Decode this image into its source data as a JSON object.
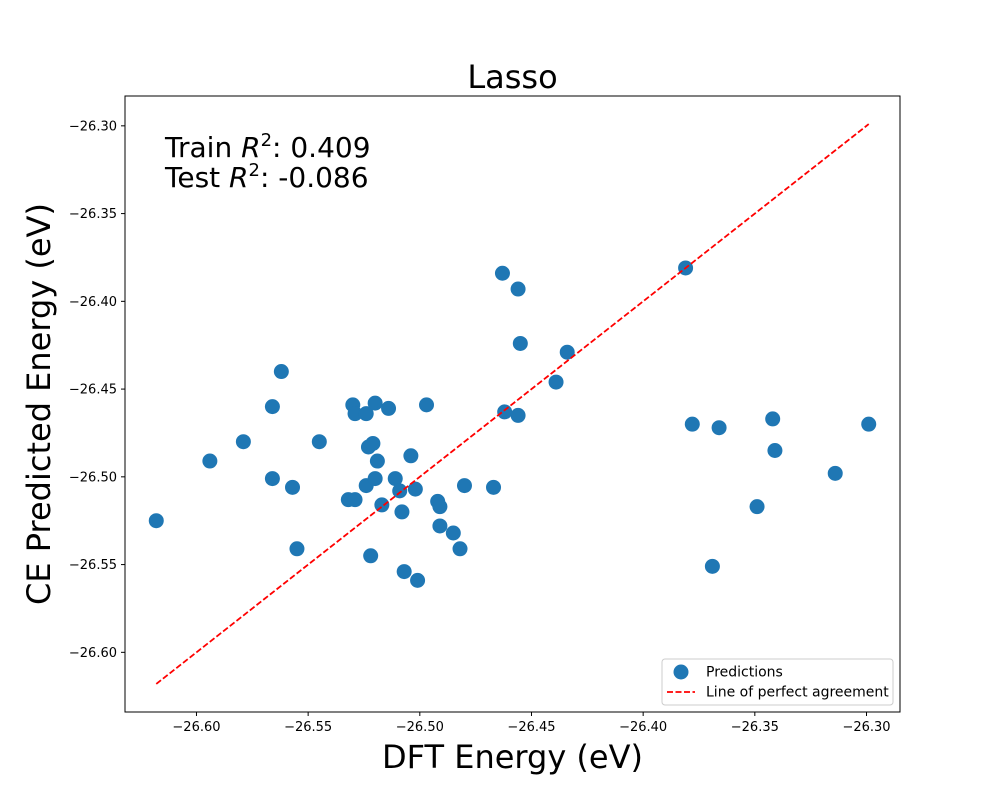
{
  "chart_data": {
    "type": "scatter",
    "title": "Lasso",
    "xlabel": "DFT Energy (eV)",
    "ylabel": "CE Predicted Energy (eV)",
    "xlim": [
      -26.632,
      -26.285
    ],
    "ylim": [
      -26.634,
      -26.283
    ],
    "xticks": [
      -26.6,
      -26.55,
      -26.5,
      -26.45,
      -26.4,
      -26.35,
      -26.3
    ],
    "yticks": [
      -26.3,
      -26.35,
      -26.4,
      -26.45,
      -26.5,
      -26.55,
      -26.6
    ],
    "xtick_labels": [
      "−26.60",
      "−26.55",
      "−26.50",
      "−26.45",
      "−26.40",
      "−26.35",
      "−26.30"
    ],
    "ytick_labels": [
      "−26.30",
      "−26.35",
      "−26.40",
      "−26.45",
      "−26.50",
      "−26.55",
      "−26.60"
    ],
    "grid": false,
    "legend_position": "bottom-right",
    "annotations": [
      {
        "prefix": "Train ",
        "symbol": "R",
        "sup": "2",
        "suffix": ": 0.409"
      },
      {
        "prefix": "Test ",
        "symbol": "R",
        "sup": "2",
        "suffix": ": -0.086"
      }
    ],
    "series": [
      {
        "name": "Predictions",
        "kind": "scatter",
        "color": "#1f77b4",
        "points": [
          [
            -26.618,
            -26.525
          ],
          [
            -26.594,
            -26.491
          ],
          [
            -26.579,
            -26.48
          ],
          [
            -26.566,
            -26.46
          ],
          [
            -26.566,
            -26.501
          ],
          [
            -26.562,
            -26.44
          ],
          [
            -26.557,
            -26.506
          ],
          [
            -26.555,
            -26.541
          ],
          [
            -26.545,
            -26.48
          ],
          [
            -26.532,
            -26.513
          ],
          [
            -26.53,
            -26.459
          ],
          [
            -26.529,
            -26.513
          ],
          [
            -26.529,
            -26.464
          ],
          [
            -26.524,
            -26.464
          ],
          [
            -26.524,
            -26.505
          ],
          [
            -26.523,
            -26.483
          ],
          [
            -26.522,
            -26.545
          ],
          [
            -26.521,
            -26.481
          ],
          [
            -26.52,
            -26.501
          ],
          [
            -26.52,
            -26.458
          ],
          [
            -26.519,
            -26.491
          ],
          [
            -26.517,
            -26.516
          ],
          [
            -26.514,
            -26.461
          ],
          [
            -26.511,
            -26.501
          ],
          [
            -26.509,
            -26.508
          ],
          [
            -26.508,
            -26.52
          ],
          [
            -26.507,
            -26.554
          ],
          [
            -26.504,
            -26.488
          ],
          [
            -26.502,
            -26.507
          ],
          [
            -26.501,
            -26.559
          ],
          [
            -26.497,
            -26.459
          ],
          [
            -26.492,
            -26.514
          ],
          [
            -26.491,
            -26.517
          ],
          [
            -26.491,
            -26.528
          ],
          [
            -26.485,
            -26.532
          ],
          [
            -26.482,
            -26.541
          ],
          [
            -26.48,
            -26.505
          ],
          [
            -26.467,
            -26.506
          ],
          [
            -26.463,
            -26.384
          ],
          [
            -26.462,
            -26.463
          ],
          [
            -26.456,
            -26.465
          ],
          [
            -26.456,
            -26.393
          ],
          [
            -26.455,
            -26.424
          ],
          [
            -26.439,
            -26.446
          ],
          [
            -26.434,
            -26.429
          ],
          [
            -26.381,
            -26.381
          ],
          [
            -26.378,
            -26.47
          ],
          [
            -26.369,
            -26.551
          ],
          [
            -26.366,
            -26.472
          ],
          [
            -26.349,
            -26.517
          ],
          [
            -26.342,
            -26.467
          ],
          [
            -26.341,
            -26.485
          ],
          [
            -26.314,
            -26.498
          ],
          [
            -26.299,
            -26.47
          ]
        ]
      },
      {
        "name": "Line of perfect agreement",
        "kind": "line",
        "color": "#ff0000",
        "points": [
          [
            -26.618,
            -26.618
          ],
          [
            -26.299,
            -26.299
          ]
        ]
      }
    ]
  }
}
